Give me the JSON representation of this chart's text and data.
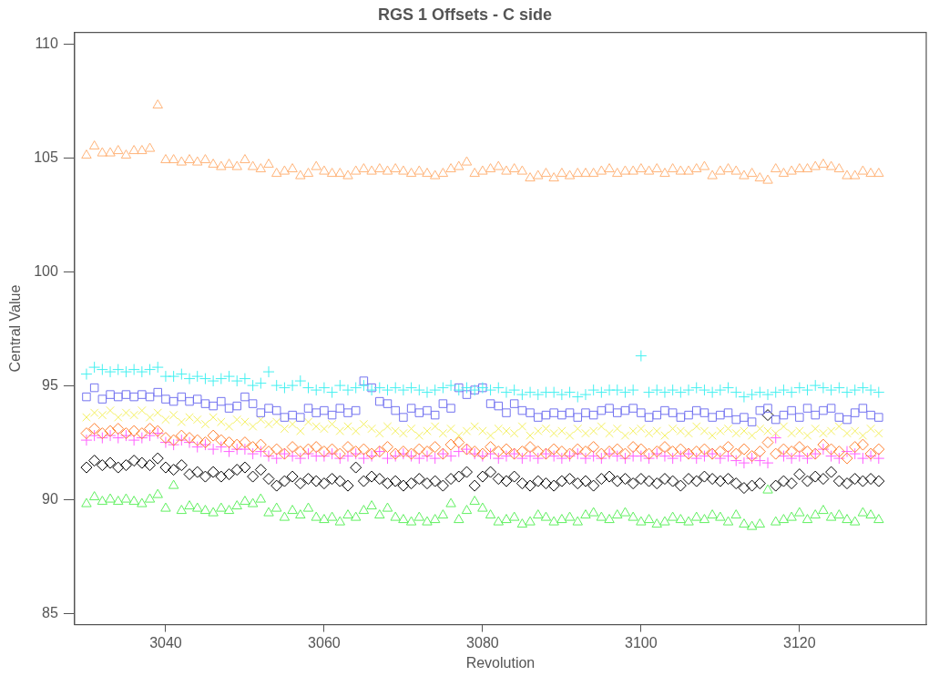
{
  "chart_data": {
    "type": "scatter",
    "title": "RGS 1 Offsets - C side",
    "xlabel": "Revolution",
    "ylabel": "Central Value",
    "x": [
      3030,
      3031,
      3032,
      3033,
      3034,
      3035,
      3036,
      3037,
      3038,
      3039,
      3040,
      3041,
      3042,
      3043,
      3044,
      3045,
      3046,
      3047,
      3048,
      3049,
      3050,
      3051,
      3052,
      3053,
      3054,
      3055,
      3056,
      3057,
      3058,
      3059,
      3060,
      3061,
      3062,
      3063,
      3064,
      3065,
      3066,
      3067,
      3068,
      3069,
      3070,
      3071,
      3072,
      3073,
      3074,
      3075,
      3076,
      3077,
      3078,
      3079,
      3080,
      3081,
      3082,
      3083,
      3084,
      3085,
      3086,
      3087,
      3088,
      3089,
      3090,
      3091,
      3092,
      3093,
      3094,
      3095,
      3096,
      3097,
      3098,
      3099,
      3100,
      3101,
      3102,
      3103,
      3104,
      3105,
      3106,
      3107,
      3108,
      3109,
      3110,
      3111,
      3112,
      3113,
      3114,
      3115,
      3116,
      3117,
      3118,
      3119,
      3120,
      3121,
      3122,
      3123,
      3124,
      3125,
      3126,
      3127,
      3128,
      3129,
      3130
    ],
    "xlim": [
      3028.5,
      3136
    ],
    "xticks": [
      3040,
      3060,
      3080,
      3100,
      3120
    ],
    "ylim": [
      84.5,
      110.5
    ],
    "yticks": [
      85,
      90,
      95,
      100,
      105,
      110
    ],
    "grid": false,
    "legend": false,
    "series": [
      {
        "color": "#ffb47a",
        "marker": "triangle",
        "values": [
          105.1,
          105.5,
          105.2,
          105.2,
          105.3,
          105.1,
          105.3,
          105.3,
          105.4,
          107.3,
          104.9,
          104.9,
          104.8,
          104.9,
          104.8,
          104.9,
          104.7,
          104.6,
          104.7,
          104.6,
          104.9,
          104.6,
          104.5,
          104.7,
          104.3,
          104.4,
          104.5,
          104.2,
          104.3,
          104.6,
          104.4,
          104.3,
          104.3,
          104.2,
          104.4,
          104.5,
          104.4,
          104.5,
          104.4,
          104.5,
          104.4,
          104.3,
          104.4,
          104.3,
          104.2,
          104.3,
          104.5,
          104.6,
          104.8,
          104.3,
          104.4,
          104.5,
          104.6,
          104.4,
          104.5,
          104.4,
          104.1,
          104.2,
          104.3,
          104.1,
          104.3,
          104.2,
          104.3,
          104.3,
          104.3,
          104.4,
          104.5,
          104.3,
          104.4,
          104.4,
          104.5,
          104.4,
          104.5,
          104.3,
          104.5,
          104.4,
          104.4,
          104.5,
          104.6,
          104.2,
          104.4,
          104.5,
          104.4,
          104.2,
          104.3,
          104.1,
          104.0,
          104.5,
          104.3,
          104.4,
          104.5,
          104.5,
          104.6,
          104.7,
          104.6,
          104.5,
          104.2,
          104.2,
          104.4,
          104.3,
          104.3
        ]
      },
      {
        "color": "#44f0f0",
        "marker": "cross",
        "values": [
          95.5,
          95.8,
          95.7,
          95.6,
          95.7,
          95.6,
          95.7,
          95.6,
          95.7,
          95.8,
          95.4,
          95.4,
          95.5,
          95.3,
          95.4,
          95.3,
          95.2,
          95.3,
          95.4,
          95.2,
          95.3,
          95.0,
          95.1,
          95.6,
          95.0,
          94.9,
          95.0,
          95.2,
          94.9,
          94.8,
          94.9,
          94.7,
          95.0,
          94.8,
          94.9,
          95.0,
          94.8,
          94.9,
          94.8,
          94.9,
          94.8,
          94.9,
          94.8,
          94.7,
          94.8,
          94.9,
          95.0,
          94.8,
          94.9,
          94.8,
          94.9,
          94.8,
          94.9,
          94.7,
          94.8,
          94.6,
          94.7,
          94.6,
          94.7,
          94.7,
          94.6,
          94.7,
          94.5,
          94.6,
          94.8,
          94.7,
          94.8,
          94.8,
          94.7,
          94.8,
          96.3,
          94.7,
          94.8,
          94.7,
          94.8,
          94.7,
          94.8,
          94.9,
          94.8,
          94.7,
          94.8,
          94.9,
          94.7,
          94.5,
          94.6,
          94.7,
          94.6,
          94.7,
          94.8,
          94.7,
          94.9,
          94.8,
          95.0,
          94.9,
          94.8,
          94.9,
          94.7,
          94.8,
          94.9,
          94.8,
          94.7
        ]
      },
      {
        "color": "#7474f0",
        "marker": "square",
        "values": [
          94.5,
          94.9,
          94.4,
          94.6,
          94.5,
          94.6,
          94.5,
          94.6,
          94.5,
          94.7,
          94.4,
          94.3,
          94.5,
          94.3,
          94.4,
          94.2,
          94.1,
          94.3,
          94.0,
          94.1,
          94.5,
          94.2,
          93.8,
          94.0,
          93.9,
          93.6,
          93.7,
          93.6,
          94.0,
          93.8,
          93.9,
          93.7,
          94.0,
          93.8,
          93.9,
          95.2,
          94.9,
          94.3,
          94.2,
          93.9,
          93.6,
          94.0,
          93.8,
          93.9,
          93.7,
          94.2,
          94.0,
          94.9,
          94.6,
          94.8,
          94.9,
          94.2,
          94.1,
          93.8,
          94.2,
          93.9,
          93.8,
          93.6,
          93.7,
          93.8,
          93.7,
          93.8,
          93.6,
          93.8,
          93.7,
          93.9,
          94.0,
          93.8,
          93.9,
          94.0,
          93.8,
          93.6,
          93.7,
          93.9,
          93.8,
          93.6,
          93.7,
          93.9,
          93.8,
          93.6,
          93.7,
          93.8,
          93.5,
          93.6,
          93.4,
          93.9,
          94.0,
          93.5,
          93.7,
          93.9,
          93.6,
          94.0,
          93.7,
          93.9,
          94.0,
          93.6,
          93.5,
          93.8,
          94.0,
          93.7,
          93.6
        ]
      },
      {
        "color": "#f4f060",
        "marker": "x",
        "values": [
          93.6,
          93.8,
          93.7,
          93.9,
          93.6,
          93.8,
          93.7,
          93.9,
          93.6,
          93.8,
          93.5,
          93.7,
          93.4,
          93.6,
          93.5,
          93.3,
          93.6,
          93.4,
          93.2,
          93.5,
          93.4,
          93.2,
          93.5,
          93.3,
          93.4,
          93.1,
          93.3,
          93.0,
          93.4,
          93.2,
          93.1,
          93.3,
          93.0,
          93.2,
          93.0,
          93.3,
          93.1,
          92.9,
          93.2,
          93.0,
          92.9,
          93.1,
          92.8,
          93.0,
          93.2,
          92.9,
          93.1,
          92.8,
          93.0,
          93.2,
          93.0,
          92.8,
          93.1,
          93.0,
          92.9,
          93.2,
          92.8,
          93.0,
          93.1,
          92.9,
          93.0,
          92.8,
          93.1,
          92.9,
          93.0,
          93.2,
          92.9,
          93.1,
          92.8,
          93.0,
          93.1,
          92.9,
          93.0,
          92.8,
          93.1,
          93.0,
          92.9,
          93.2,
          93.0,
          92.8,
          93.0,
          93.1,
          92.9,
          93.0,
          92.8,
          93.1,
          93.0,
          92.9,
          93.2,
          92.9,
          93.0,
          92.8,
          93.1,
          92.9,
          93.0,
          93.2,
          92.9,
          93.0,
          92.8,
          93.1,
          92.9
        ]
      },
      {
        "color": "#ff8030",
        "marker": "diamond",
        "values": [
          92.9,
          93.1,
          92.9,
          93.0,
          93.1,
          92.9,
          93.0,
          92.9,
          93.1,
          93.0,
          92.7,
          92.6,
          92.8,
          92.7,
          92.6,
          92.5,
          92.8,
          92.6,
          92.5,
          92.4,
          92.5,
          92.3,
          92.4,
          92.1,
          92.2,
          92.0,
          92.3,
          92.1,
          92.2,
          92.3,
          92.1,
          92.2,
          92.0,
          92.3,
          92.1,
          92.2,
          92.0,
          92.1,
          92.3,
          92.0,
          92.1,
          92.0,
          92.2,
          92.1,
          92.3,
          92.0,
          92.4,
          92.5,
          92.2,
          92.1,
          92.0,
          92.3,
          92.1,
          92.2,
          92.0,
          92.1,
          92.3,
          92.1,
          92.0,
          92.2,
          92.1,
          92.0,
          92.2,
          92.1,
          92.3,
          92.0,
          92.1,
          92.2,
          92.0,
          92.3,
          92.2,
          92.0,
          92.1,
          92.3,
          92.1,
          92.2,
          92.0,
          92.1,
          92.2,
          92.0,
          92.1,
          92.3,
          92.0,
          92.2,
          91.9,
          92.1,
          92.5,
          92.0,
          92.2,
          92.1,
          92.3,
          92.1,
          92.0,
          92.4,
          92.2,
          92.1,
          91.8,
          92.3,
          92.4,
          92.0,
          92.2
        ]
      },
      {
        "color": "#ff60ff",
        "marker": "cross",
        "values": [
          92.6,
          92.8,
          92.7,
          92.8,
          92.7,
          92.8,
          92.6,
          92.7,
          92.8,
          92.9,
          92.5,
          92.4,
          92.6,
          92.5,
          92.3,
          92.4,
          92.2,
          92.3,
          92.1,
          92.2,
          92.2,
          92.0,
          92.1,
          91.9,
          91.8,
          92.0,
          91.9,
          91.8,
          92.0,
          91.9,
          91.9,
          92.0,
          91.8,
          91.9,
          92.0,
          91.8,
          91.9,
          92.1,
          91.8,
          91.9,
          92.0,
          91.9,
          91.8,
          91.9,
          91.8,
          92.0,
          91.9,
          92.1,
          92.2,
          92.0,
          91.9,
          92.0,
          91.8,
          91.9,
          92.0,
          91.8,
          91.9,
          91.8,
          92.0,
          91.9,
          91.8,
          91.9,
          92.0,
          91.8,
          91.9,
          91.8,
          92.0,
          91.9,
          91.8,
          91.9,
          91.9,
          91.8,
          92.0,
          91.9,
          91.8,
          91.9,
          92.0,
          91.8,
          91.9,
          92.0,
          91.8,
          91.9,
          91.7,
          91.6,
          91.8,
          91.7,
          91.6,
          92.7,
          91.9,
          91.8,
          91.9,
          91.8,
          92.0,
          92.2,
          91.9,
          91.8,
          92.1,
          92.0,
          91.8,
          91.9,
          91.8
        ]
      },
      {
        "color": "#000000",
        "marker": "diamond",
        "values": [
          91.4,
          91.7,
          91.5,
          91.6,
          91.4,
          91.5,
          91.7,
          91.6,
          91.5,
          91.8,
          91.4,
          91.3,
          91.5,
          91.1,
          91.2,
          91.0,
          91.2,
          91.0,
          91.1,
          91.3,
          91.4,
          91.0,
          91.3,
          90.9,
          90.6,
          90.8,
          91.0,
          90.7,
          90.9,
          90.8,
          90.7,
          90.9,
          90.8,
          90.6,
          91.4,
          90.8,
          91.0,
          90.9,
          90.7,
          90.8,
          90.6,
          90.7,
          90.9,
          90.7,
          90.8,
          90.6,
          90.9,
          91.0,
          91.2,
          90.6,
          91.0,
          91.2,
          90.9,
          90.8,
          91.0,
          90.7,
          90.6,
          90.8,
          90.7,
          90.6,
          90.8,
          90.9,
          90.7,
          90.8,
          90.6,
          90.9,
          91.0,
          90.8,
          90.9,
          90.7,
          90.9,
          90.8,
          90.7,
          90.9,
          90.8,
          90.6,
          90.9,
          90.8,
          91.0,
          90.9,
          90.8,
          90.9,
          90.7,
          90.5,
          90.6,
          90.7,
          93.7,
          90.6,
          90.8,
          90.7,
          91.1,
          90.8,
          91.0,
          90.9,
          91.2,
          90.8,
          90.7,
          90.9,
          90.8,
          90.9,
          90.8
        ]
      },
      {
        "color": "#60f060",
        "marker": "triangle",
        "values": [
          89.8,
          90.1,
          89.9,
          90.0,
          89.9,
          90.0,
          89.9,
          89.8,
          90.0,
          90.2,
          89.6,
          90.6,
          89.5,
          89.7,
          89.6,
          89.5,
          89.4,
          89.6,
          89.5,
          89.7,
          89.9,
          89.8,
          90.0,
          89.4,
          89.6,
          89.2,
          89.5,
          89.3,
          89.6,
          89.2,
          89.1,
          89.2,
          89.0,
          89.3,
          89.2,
          89.5,
          89.7,
          89.3,
          89.6,
          89.2,
          89.1,
          89.0,
          89.2,
          89.0,
          89.1,
          89.3,
          89.8,
          89.1,
          89.5,
          89.9,
          89.6,
          89.3,
          89.0,
          89.1,
          89.2,
          88.9,
          89.0,
          89.3,
          89.2,
          89.0,
          89.1,
          89.2,
          89.0,
          89.3,
          89.4,
          89.2,
          89.1,
          89.3,
          89.4,
          89.2,
          89.0,
          89.1,
          88.9,
          89.0,
          89.2,
          89.1,
          89.0,
          89.2,
          89.1,
          89.3,
          89.2,
          89.0,
          89.3,
          88.9,
          88.8,
          88.9,
          90.4,
          89.0,
          89.1,
          89.2,
          89.4,
          89.1,
          89.3,
          89.5,
          89.2,
          89.3,
          89.1,
          89.0,
          89.4,
          89.3,
          89.1
        ]
      }
    ]
  }
}
